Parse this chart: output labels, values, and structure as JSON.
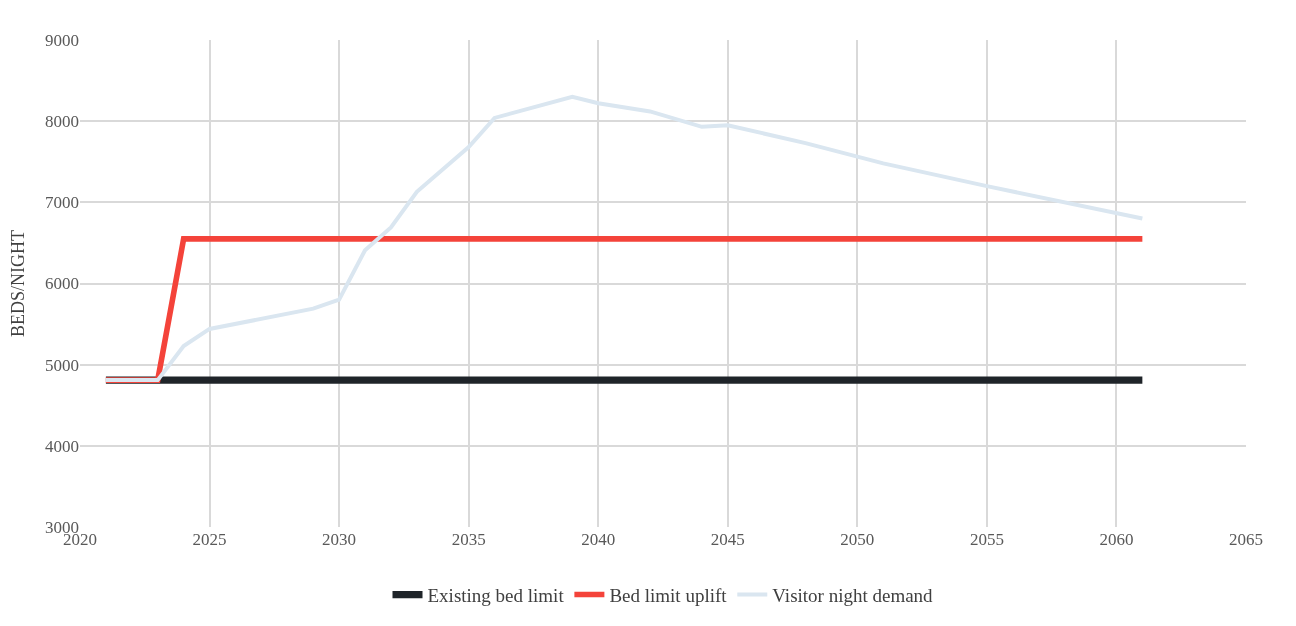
{
  "chart_data": {
    "type": "line",
    "ylabel": "BEDS/NIGHT",
    "xlim": [
      2020,
      2065
    ],
    "xticks": [
      2020,
      2025,
      2030,
      2035,
      2040,
      2045,
      2050,
      2055,
      2060,
      2065
    ],
    "ylim": [
      3000,
      9000
    ],
    "yticks": [
      3000,
      4000,
      5000,
      6000,
      7000,
      8000,
      9000
    ],
    "grid": true,
    "legend": "bottom",
    "marker": "none",
    "line_style": "solid",
    "series": [
      {
        "name": "Existing bed limit",
        "color": "#1f2429",
        "x": [
          2021,
          2061
        ],
        "values": [
          4810,
          4810
        ]
      },
      {
        "name": "Bed limit uplift",
        "color": "#f4433a",
        "x": [
          2021,
          2023,
          2024,
          2061
        ],
        "values": [
          4810,
          4810,
          6550,
          6550
        ]
      },
      {
        "name": "Visitor night demand",
        "color": "#dae6f0",
        "x": [
          2021,
          2023,
          2024,
          2025,
          2029,
          2030,
          2031,
          2032,
          2033,
          2035,
          2036,
          2039,
          2040,
          2042,
          2044,
          2045,
          2048,
          2051,
          2055,
          2061
        ],
        "values": [
          4810,
          4810,
          5230,
          5440,
          5690,
          5800,
          6410,
          6690,
          7130,
          7680,
          8040,
          8300,
          8220,
          8120,
          7930,
          7950,
          7730,
          7480,
          7200,
          6800
        ]
      }
    ]
  }
}
